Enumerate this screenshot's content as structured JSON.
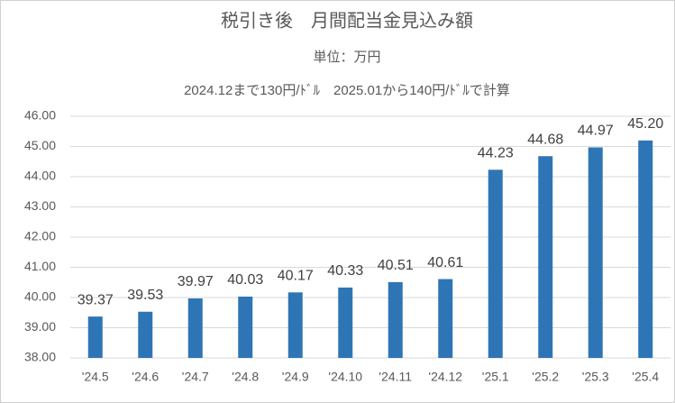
{
  "chart_data": {
    "type": "bar",
    "title": "税引き後　月間配当金見込み額",
    "subtitle": "単位：万円",
    "annotation": "2024.12まで130円/ﾄﾞﾙ　2025.01から140円/ﾄﾞﾙで計算",
    "categories": [
      "'24.5",
      "'24.6",
      "'24.7",
      "'24.8",
      "'24.9",
      "'24.10",
      "'24.11",
      "'24.12",
      "'25.1",
      "'25.2",
      "'25.3",
      "'25.4"
    ],
    "values": [
      39.37,
      39.53,
      39.97,
      40.03,
      40.17,
      40.33,
      40.51,
      40.61,
      44.23,
      44.68,
      44.97,
      45.2
    ],
    "value_labels": [
      "39.37",
      "39.53",
      "39.97",
      "40.03",
      "40.17",
      "40.33",
      "40.51",
      "40.61",
      "44.23",
      "44.68",
      "44.97",
      "45.20"
    ],
    "color": "#2e75b6",
    "ylim": [
      38,
      46
    ],
    "yticks": [
      {
        "value": 38,
        "label": "38.00"
      },
      {
        "value": 39,
        "label": "39.00"
      },
      {
        "value": 40,
        "label": "40.00"
      },
      {
        "value": 41,
        "label": "41.00"
      },
      {
        "value": 42,
        "label": "42.00"
      },
      {
        "value": 43,
        "label": "43.00"
      },
      {
        "value": 44,
        "label": "44.00"
      },
      {
        "value": 45,
        "label": "45.00"
      },
      {
        "value": 46,
        "label": "46.00"
      }
    ],
    "grid": true
  }
}
